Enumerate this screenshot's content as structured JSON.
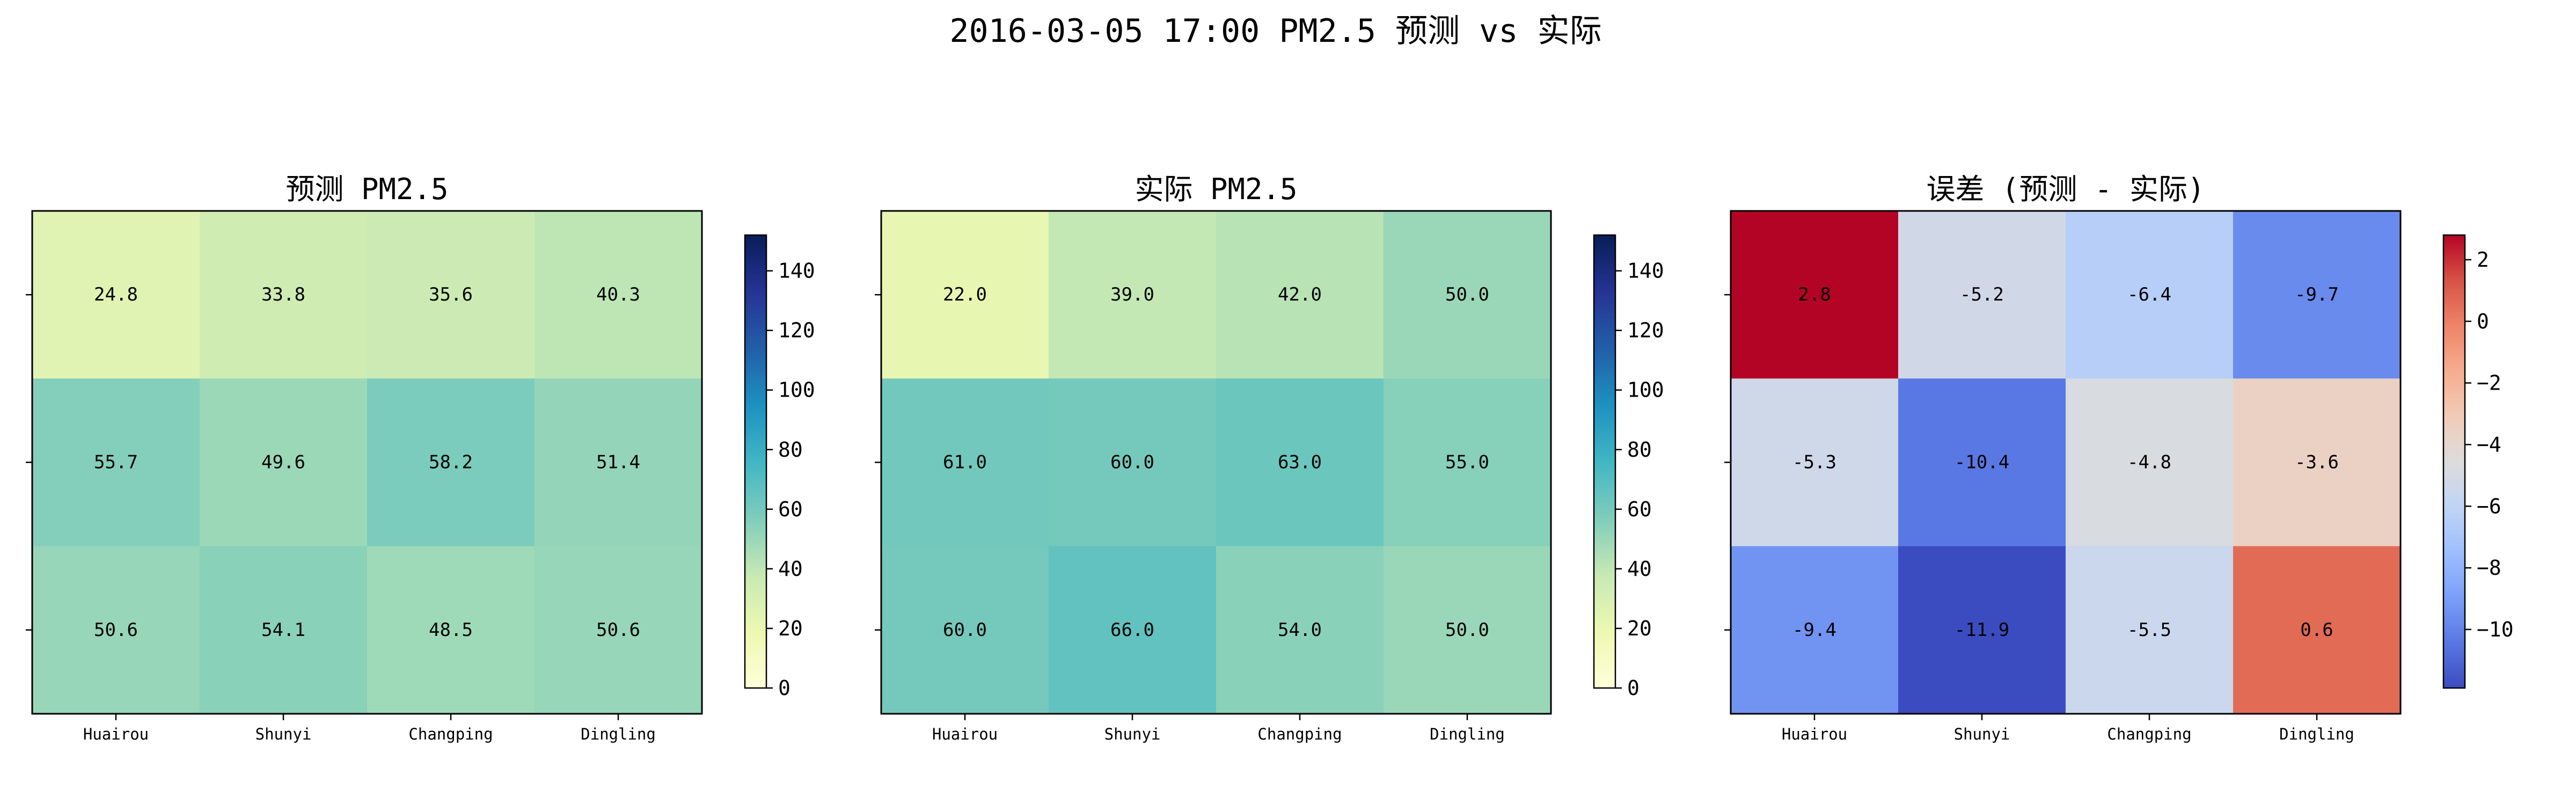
{
  "suptitle": "2016-03-05 17:00 PM2.5 预测 vs 实际",
  "chart_data": [
    {
      "type": "heatmap",
      "title": "预测 PM2.5",
      "categories": [
        "Huairou",
        "Shunyi",
        "Changping",
        "Dingling"
      ],
      "rows": 3,
      "values": [
        [
          24.8,
          33.8,
          35.6,
          40.3
        ],
        [
          55.7,
          49.6,
          58.2,
          51.4
        ],
        [
          50.6,
          54.1,
          48.5,
          50.6
        ]
      ],
      "labels": [
        [
          "24.8",
          "33.8",
          "35.6",
          "40.3"
        ],
        [
          "55.7",
          "49.6",
          "58.2",
          "51.4"
        ],
        [
          "50.6",
          "54.1",
          "48.5",
          "50.6"
        ]
      ],
      "colormap": "YlGnBu",
      "vmin": 0,
      "vmax": 152,
      "colorbar_ticks": [
        0,
        20,
        40,
        60,
        80,
        100,
        120,
        140
      ],
      "xlabel": "",
      "ylabel": ""
    },
    {
      "type": "heatmap",
      "title": "实际 PM2.5",
      "categories": [
        "Huairou",
        "Shunyi",
        "Changping",
        "Dingling"
      ],
      "rows": 3,
      "values": [
        [
          22.0,
          39.0,
          42.0,
          50.0
        ],
        [
          61.0,
          60.0,
          63.0,
          55.0
        ],
        [
          60.0,
          66.0,
          54.0,
          50.0
        ]
      ],
      "labels": [
        [
          "22.0",
          "39.0",
          "42.0",
          "50.0"
        ],
        [
          "61.0",
          "60.0",
          "63.0",
          "55.0"
        ],
        [
          "60.0",
          "66.0",
          "54.0",
          "50.0"
        ]
      ],
      "colormap": "YlGnBu",
      "vmin": 0,
      "vmax": 152,
      "colorbar_ticks": [
        0,
        20,
        40,
        60,
        80,
        100,
        120,
        140
      ],
      "xlabel": "",
      "ylabel": ""
    },
    {
      "type": "heatmap",
      "title": "误差 (预测 - 实际)",
      "categories": [
        "Huairou",
        "Shunyi",
        "Changping",
        "Dingling"
      ],
      "rows": 3,
      "values": [
        [
          2.8,
          -5.2,
          -6.4,
          -9.7
        ],
        [
          -5.3,
          -10.4,
          -4.8,
          -3.6
        ],
        [
          -9.4,
          -11.9,
          -5.5,
          0.6
        ]
      ],
      "labels": [
        [
          "2.8",
          "-5.2",
          "-6.4",
          "-9.7"
        ],
        [
          "-5.3",
          "-10.4",
          "-4.8",
          "-3.6"
        ],
        [
          "-9.4",
          "-11.9",
          "-5.5",
          "0.6"
        ]
      ],
      "colormap": "coolwarm",
      "vmin": -11.9,
      "vmax": 2.8,
      "colorbar_ticks": [
        -10,
        -8,
        -6,
        -4,
        -2,
        0,
        2
      ],
      "colorbar_tick_labels": [
        "−10",
        "−8",
        "−6",
        "−4",
        "−2",
        "0",
        "2"
      ],
      "xlabel": "",
      "ylabel": ""
    }
  ]
}
